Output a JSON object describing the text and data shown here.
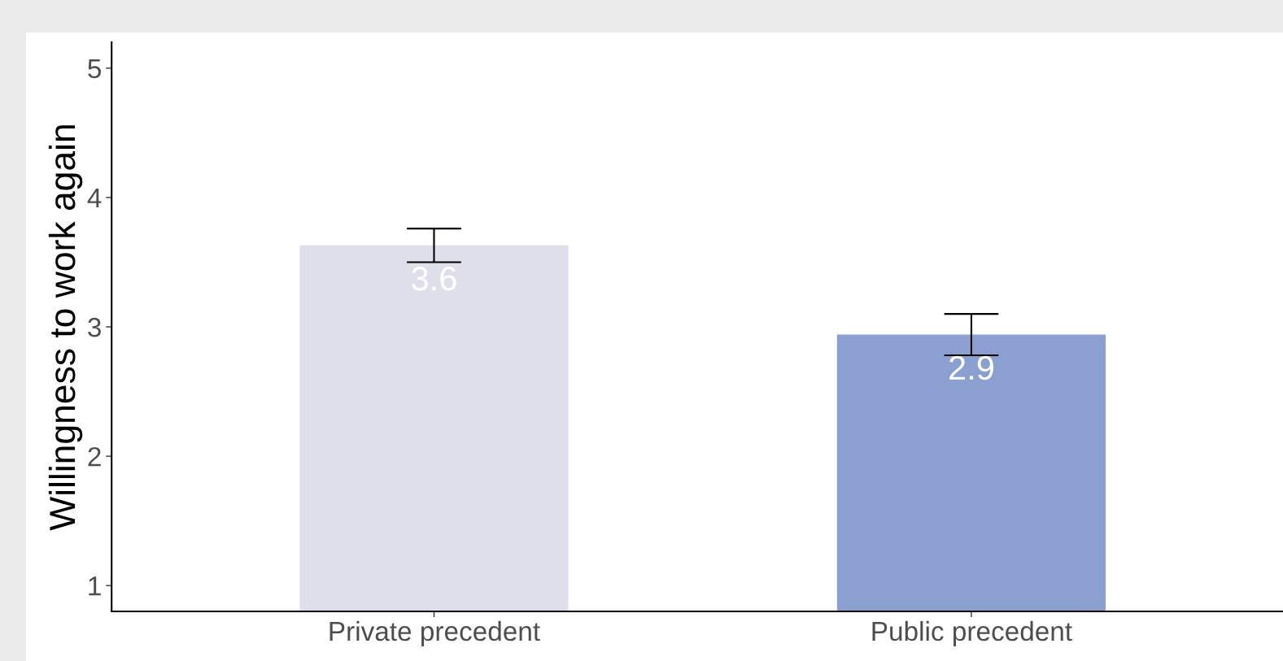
{
  "chart_data": {
    "type": "bar",
    "ylabel": "Willingness to work again",
    "categories": [
      "Private precedent",
      "Public precedent"
    ],
    "values": [
      3.63,
      2.94
    ],
    "colors": [
      "#dedfea",
      "#8c9fd1"
    ],
    "errors": [
      0.13,
      0.16
    ],
    "value_labels": [
      "3.6",
      "2.9"
    ],
    "ylim": [
      0.8,
      5.2
    ],
    "yticks": [
      1,
      2,
      3,
      4,
      5
    ],
    "grid": false
  }
}
